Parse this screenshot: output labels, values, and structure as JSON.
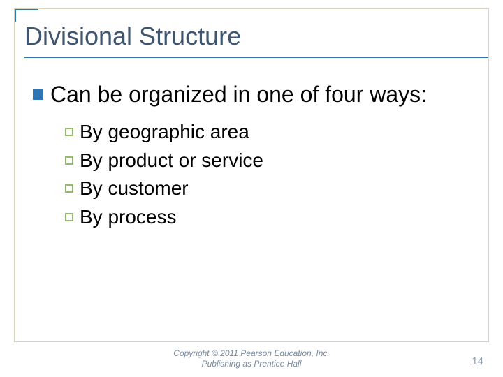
{
  "slide": {
    "title": "Divisional Structure",
    "title_color": "#3f5570",
    "title_fontsize": 36,
    "accent_color": "#2e75b6",
    "border_color": "#d9d2bd",
    "background_color": "#ffffff",
    "body": {
      "l1_text": "Can be organized in one of four ways:",
      "l1_fontsize": 32,
      "l1_bullet_color": "#2e75b6",
      "l2_items": [
        "By geographic area",
        "By product or service",
        "By customer",
        "By process"
      ],
      "l2_fontsize": 28,
      "l2_bullet_border_color": "#95b96a"
    }
  },
  "footer": {
    "line1": "Copyright © 2011 Pearson Education, Inc.",
    "line2": "Publishing as Prentice Hall",
    "color": "#7a8ca3",
    "fontsize": 12
  },
  "page_number": "14",
  "page_number_color": "#8aa0b8"
}
